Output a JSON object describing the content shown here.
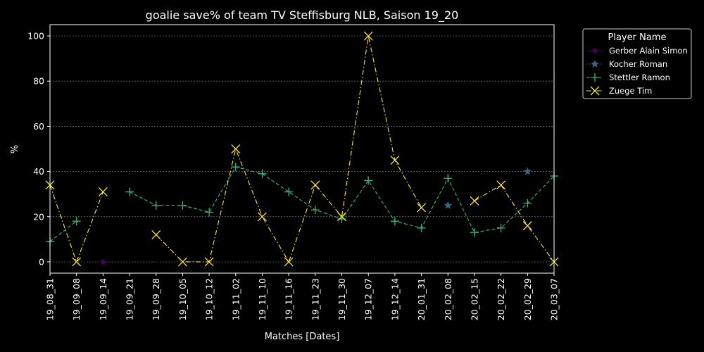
{
  "chart_data": {
    "type": "line",
    "title": "goalie save% of team TV Steffisburg NLB, Saison 19_20",
    "xlabel": "Matches [Dates]",
    "ylabel": "%",
    "ylim": [
      -5,
      105
    ],
    "yticks": [
      0,
      20,
      40,
      60,
      80,
      100
    ],
    "grid": true,
    "legend": {
      "title": "Player Name",
      "placement": "outside-top-right"
    },
    "categories": [
      "19_08_31",
      "19_09_08",
      "19_09_14",
      "19_09_21",
      "19_09_28",
      "19_10_05",
      "19_10_12",
      "19_11_02",
      "19_11_10",
      "19_11_16",
      "19_11_23",
      "19_11_30",
      "19_12_07",
      "19_12_14",
      "20_01_31",
      "20_02_08",
      "20_02_15",
      "20_02_22",
      "20_02_29",
      "20_03_07"
    ],
    "series": [
      {
        "name": "Gerber Alain Simon",
        "color": "#440154",
        "marker": "dot",
        "linestyle": "solid",
        "values": [
          null,
          null,
          0,
          null,
          null,
          null,
          null,
          null,
          null,
          null,
          null,
          null,
          null,
          null,
          null,
          null,
          null,
          null,
          null,
          null
        ]
      },
      {
        "name": "Kocher Roman",
        "color": "#31688e",
        "marker": "star",
        "linestyle": "dotted",
        "values": [
          null,
          null,
          null,
          null,
          null,
          null,
          null,
          null,
          null,
          null,
          null,
          null,
          null,
          null,
          null,
          25,
          null,
          null,
          40,
          null
        ]
      },
      {
        "name": "Stettler Ramon",
        "color": "#35b779",
        "marker": "plus",
        "linestyle": "dashed",
        "values": [
          9,
          18,
          null,
          31,
          25,
          25,
          22,
          42,
          39,
          31,
          23,
          19,
          36,
          18,
          15,
          37,
          13,
          15,
          26,
          38
        ]
      },
      {
        "name": "Zuege Tim",
        "color": "#fde725",
        "marker": "x",
        "linestyle": "dashdot",
        "values": [
          34,
          0,
          31,
          null,
          12,
          0,
          0,
          50,
          20,
          0,
          34,
          20,
          100,
          45,
          24,
          null,
          27,
          34,
          16,
          0
        ]
      }
    ]
  }
}
